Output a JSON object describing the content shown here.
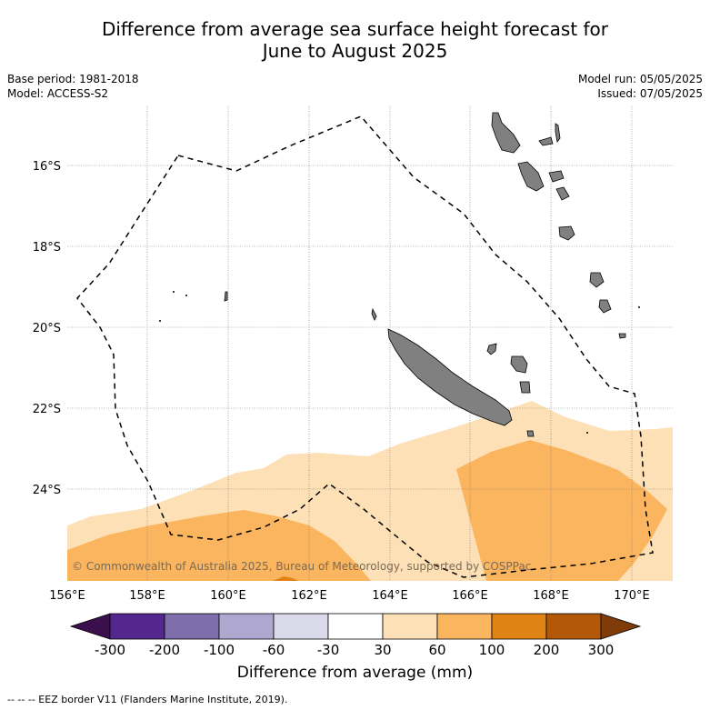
{
  "title_line1": "Difference from average sea surface height forecast for",
  "title_line2": "June to August 2025",
  "base_period": "Base period: 1981-2018",
  "model": "Model: ACCESS-S2",
  "model_run": "Model run: 05/05/2025",
  "issued": "Issued: 07/05/2025",
  "lat_labels": [
    "16°S",
    "18°S",
    "20°S",
    "22°S",
    "24°S"
  ],
  "lon_labels": [
    "156°E",
    "158°E",
    "160°E",
    "162°E",
    "164°E",
    "166°E",
    "168°E",
    "170°E"
  ],
  "copyright": "© Commonwealth of Australia 2025, Bureau of Meteorology, supported by COSPPac",
  "colorbar": {
    "ticks": [
      "-300",
      "-200",
      "-100",
      "-60",
      "-30",
      "30",
      "60",
      "100",
      "200",
      "300"
    ],
    "colors": [
      "#3b0f4e",
      "#54278f",
      "#7e6fac",
      "#aea7d0",
      "#d9d9ea",
      "#ffffff",
      "#fde0b6",
      "#fbb55f",
      "#e08214",
      "#b35806",
      "#7f3b08"
    ],
    "label": "Difference from average (mm)"
  },
  "footnote": "--  --  -- EEZ border V11 (Flanders Marine Institute, 2019)."
}
